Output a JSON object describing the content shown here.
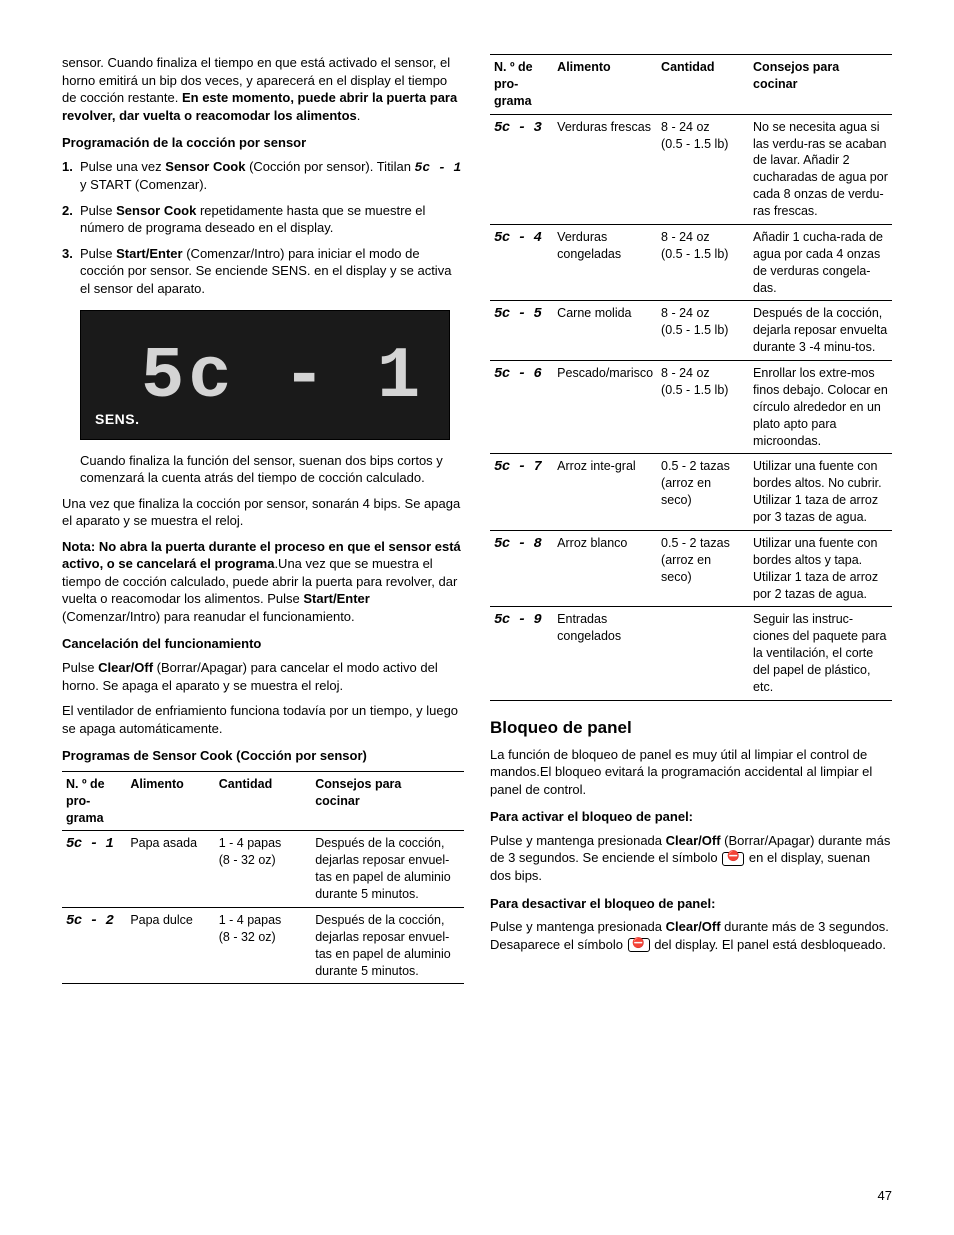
{
  "left": {
    "intro_p1": "sensor. Cuando finaliza el tiempo en que está activado el sensor, el horno emitirá un bip dos veces, y aparecerá en el display el tiempo de cocción restante. ",
    "intro_bold": "En este momento, puede abrir la puerta para revolver, dar vuelta o reacomodar los alimentos",
    "intro_end": ".",
    "h_prog": "Programación de la cocción por sensor",
    "step1_a": "Pulse una vez ",
    "step1_b": "Sensor Cook",
    "step1_c": " (Cocción por sensor). Titilan ",
    "step1_sc": "5c - 1",
    "step1_d": " y START (Comenzar).",
    "step2_a": "Pulse ",
    "step2_b": "Sensor Cook",
    "step2_c": " repetidamente hasta que se muestre el número de programa deseado en el display.",
    "step3_a": "Pulse ",
    "step3_b": "Start/Enter",
    "step3_c": " (Comenzar/Intro) para iniciar el modo de cocción por sensor. Se enciende SENS. en el display y se activa el sensor del aparato.",
    "display_digits": "5c - 1",
    "display_sens": "SENS.",
    "after_display": "Cuando finaliza la función del sensor, suenan dos bips cortos y comenzará la cuenta atrás del tiempo de cocción calculado.",
    "p_una_vez": "Una vez que finaliza la cocción por sensor, sonarán 4 bips. Se apaga el aparato y se muestra el reloj.",
    "nota_b": "Nota:  No abra la puerta durante el proceso en que el sensor está activo, o se cancelará el programa",
    "nota_rest": ".Una vez que se muestra el tiempo de cocción calculado, puede abrir la puerta para revolver, dar vuelta o reacomodar los alimentos. Pulse ",
    "nota_b2": "Start/Enter",
    "nota_rest2": " (Comenzar/Intro) para reanudar el funcionamiento.",
    "h_cancel": "Cancelación del funcionamiento",
    "cancel_a": "Pulse ",
    "cancel_b": "Clear/Off ",
    "cancel_c": " (Borrar/Apagar) para cancelar el modo activo del horno. Se apaga el aparato y se muestra el reloj.",
    "cancel_p2": "El ventilador de enfriamiento funciona todavía por un tiempo, y luego se apaga automáticamente.",
    "h_programs": "Programas de Sensor Cook (Cocción por sensor)"
  },
  "headers": {
    "c1a": "N. º de",
    "c1b": "pro-",
    "c1c": "grama",
    "c2": "Alimento",
    "c3": "Cantidad",
    "c4a": "Consejos para",
    "c4b": "cocinar"
  },
  "table1": [
    {
      "code": "5c - 1",
      "alim": "Papa asada",
      "cant": "1 - 4 papas\n(8 - 32 oz)",
      "tips": "Después de la cocción, dejarlas reposar envuel-tas en papel de aluminio durante 5 minutos."
    },
    {
      "code": "5c - 2",
      "alim": "Papa dulce",
      "cant": "1 - 4 papas\n(8 - 32 oz)",
      "tips": "Después de la cocción, dejarlas reposar envuel-tas en papel de aluminio durante 5 minutos."
    }
  ],
  "table2": [
    {
      "code": "5c - 3",
      "alim": "Verduras frescas",
      "cant": "8 - 24 oz\n(0.5 - 1.5 lb)",
      "tips": "No se necesita agua si las verdu-ras se acaban de lavar. Añadir 2 cucharadas de agua por cada 8 onzas de verdu-ras frescas."
    },
    {
      "code": "5c - 4",
      "alim": "Verduras congeladas",
      "cant": "8 - 24 oz\n(0.5 - 1.5 lb)",
      "tips": "Añadir 1 cucha-rada de agua por cada 4 onzas de verduras congela-das."
    },
    {
      "code": "5c - 5",
      "alim": "Carne molida",
      "cant": "8 - 24 oz\n(0.5 - 1.5 lb)",
      "tips": "Después de la cocción, dejarla reposar envuelta durante 3 -4 minu-tos."
    },
    {
      "code": "5c - 6",
      "alim": "Pescado/marisco",
      "cant": "8 - 24 oz\n(0.5 - 1.5 lb)",
      "tips": "Enrollar los extre-mos finos debajo. Colocar en círculo alrededor en un plato apto para microondas."
    },
    {
      "code": "5c - 7",
      "alim": "Arroz inte-gral",
      "cant": "0.5 - 2 tazas\n(arroz en seco)",
      "tips": "Utilizar una fuente con bordes altos. No cubrir. Utilizar 1 taza de arroz por 3 tazas de agua."
    },
    {
      "code": "5c - 8",
      "alim": "Arroz blanco",
      "cant": "0.5 - 2 tazas\n(arroz en seco)",
      "tips": "Utilizar una fuente con bordes altos y tapa. Utilizar 1 taza de arroz por 2 tazas de agua."
    },
    {
      "code": "5c - 9",
      "alim": "Entradas congelados",
      "cant": "",
      "tips": "Seguir las instruc-ciones del paquete para la ventilación, el corte del papel de plástico, etc."
    }
  ],
  "bloqueo": {
    "h": "Bloqueo de panel",
    "p1": "La función de bloqueo de panel es muy útil al limpiar el control de mandos.El bloqueo evitará la programación accidental al limpiar el panel de control.",
    "h_act": "Para activar el bloqueo de panel:",
    "act_a": "Pulse y mantenga presionada ",
    "act_b": "Clear/Off",
    "act_c": " (Borrar/Apagar) durante más de 3 segundos. Se enciende el símbolo ",
    "act_d": " en el display, suenan dos bips.",
    "h_deact": "Para desactivar el bloqueo de panel:",
    "deact_a": "Pulse y mantenga presionada ",
    "deact_b": "Clear/Off",
    "deact_c": " durante más de 3 segundos. Desaparece el símbolo ",
    "deact_d": " del display. El panel está desbloqueado."
  },
  "page": "47"
}
